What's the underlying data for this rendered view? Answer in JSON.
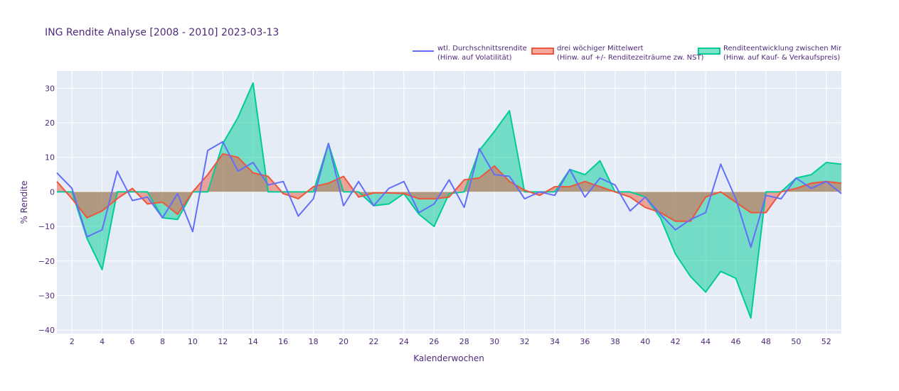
{
  "chart_data": {
    "type": "line",
    "title": "ING Rendite Analyse [2008 - 2010] 2023-03-13",
    "xlabel": "Kalenderwochen",
    "ylabel": "% Rendite",
    "xlim": [
      1,
      53
    ],
    "ylim": [
      -41,
      35
    ],
    "x_ticks": [
      2,
      4,
      6,
      8,
      10,
      12,
      14,
      16,
      18,
      20,
      22,
      24,
      26,
      28,
      30,
      32,
      34,
      36,
      38,
      40,
      42,
      44,
      46,
      48,
      50,
      52
    ],
    "y_ticks": [
      30,
      20,
      10,
      0,
      -10,
      -20,
      -30,
      -40
    ],
    "grid": true,
    "legend_position": "top-right",
    "x": [
      1,
      2,
      3,
      4,
      5,
      6,
      7,
      8,
      9,
      10,
      11,
      12,
      13,
      14,
      15,
      16,
      17,
      18,
      19,
      20,
      21,
      22,
      23,
      24,
      25,
      26,
      27,
      28,
      29,
      30,
      31,
      32,
      33,
      34,
      35,
      36,
      37,
      38,
      39,
      40,
      41,
      42,
      43,
      44,
      45,
      46,
      47,
      48,
      49,
      50,
      51,
      52,
      53
    ],
    "series": [
      {
        "name": "wtl. Durchschnittsrendite",
        "name_line2": "(Hinw. auf Volatilität)",
        "color": "#636efa",
        "style": "line",
        "values": [
          5.5,
          1,
          -13,
          -11,
          6,
          -2.5,
          -1.5,
          -7.5,
          -0.5,
          -11.5,
          12,
          14.5,
          6,
          8.5,
          2,
          3,
          -7,
          -2,
          14,
          -4,
          3,
          -4,
          1,
          3,
          -6,
          -3.5,
          3.5,
          -4.5,
          12.5,
          5,
          4.5,
          -2,
          0,
          -1,
          6.5,
          -1.5,
          4,
          2,
          -5.5,
          -1.5,
          -6.5,
          -11,
          -8,
          -6,
          8,
          -2,
          -16,
          -1,
          -2,
          4,
          1,
          3,
          -0.5
        ]
      },
      {
        "name": "drei wöchiger Mittelwert",
        "name_line2": "(Hinw. auf +/- Renditezeiträume zw. NST)",
        "color": "#ef553b",
        "fill_color": "rgba(239,85,59,0.5)",
        "style": "fill",
        "values": [
          3,
          -2,
          -7.5,
          -5.5,
          -2,
          1,
          -3.5,
          -3,
          -6.5,
          0,
          5,
          11,
          10,
          5.5,
          4.5,
          -0.5,
          -2,
          1.5,
          2.5,
          4.5,
          -1.5,
          -0.3,
          -0.3,
          -0.5,
          -2,
          -2,
          -1.5,
          3.5,
          4,
          7.5,
          3,
          0.5,
          -1,
          1.5,
          1.5,
          3,
          1.5,
          0,
          -1.5,
          -4.5,
          -6,
          -8.5,
          -8.5,
          -1.5,
          0,
          -3,
          -6,
          -6,
          0,
          1,
          2.5,
          3,
          2.5
        ]
      },
      {
        "name": "Renditeentwicklung zwischen Mindest- & Höchstkurs",
        "name_line2": "(Hinw. auf Kauf- & Verkaufspreis)",
        "color": "#00cc96",
        "fill_color": "rgba(0,204,150,0.5)",
        "style": "fill",
        "values": [
          0,
          0,
          -13.5,
          -22.5,
          0,
          0,
          0,
          -7.5,
          -8,
          0,
          0,
          14,
          21.5,
          31.5,
          0,
          0,
          0,
          0,
          14,
          0,
          0,
          -4,
          -3.5,
          -0.5,
          -6.5,
          -10,
          -0.5,
          0,
          12,
          17.5,
          23.5,
          0,
          0,
          0,
          6.5,
          5,
          9,
          0,
          0,
          -1.5,
          -7.5,
          -18,
          -24.5,
          -29,
          -23,
          -25,
          -36.5,
          0,
          0,
          4,
          5,
          8.5,
          8
        ]
      }
    ]
  }
}
